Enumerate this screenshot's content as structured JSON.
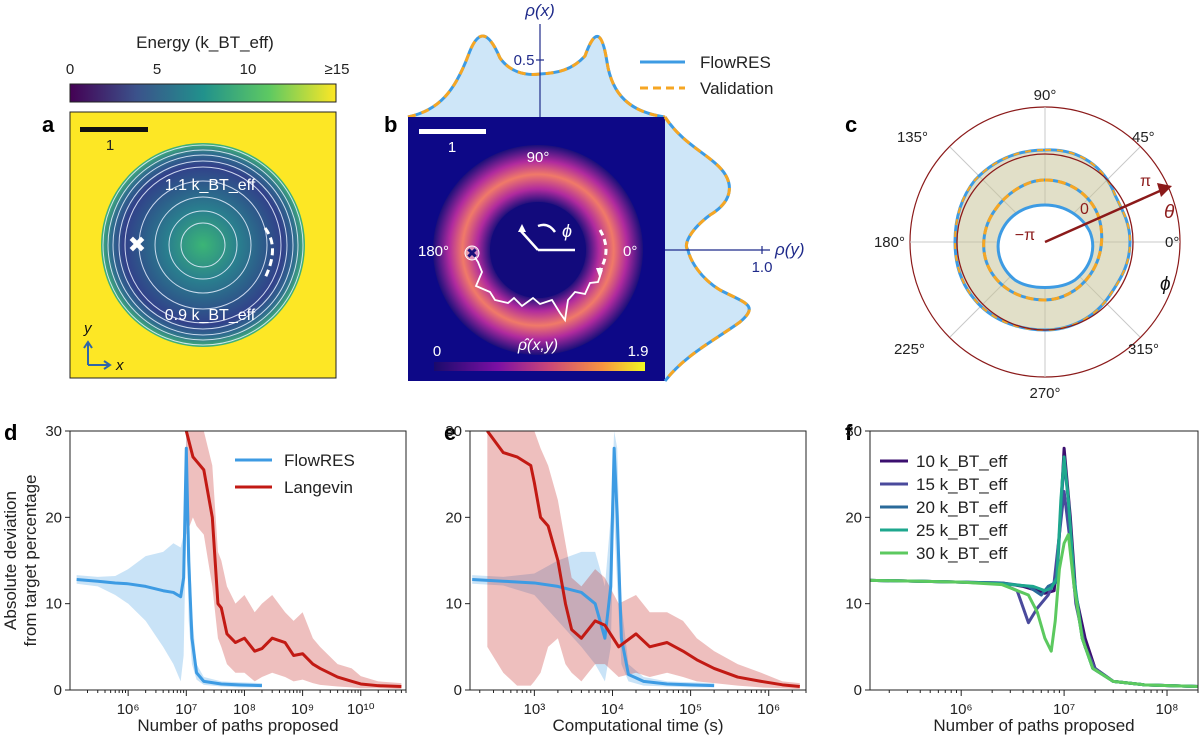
{
  "colors": {
    "flowres": "#3d9be3",
    "validation": "#f6a623",
    "langevin": "#c21a14",
    "polar_dark": "#8b1a1a",
    "axis_blue": "#1f2a8a"
  },
  "top": {
    "colorbar": {
      "title": "Energy (k_BT_eff)",
      "ticks": [
        "0",
        "5",
        "10",
        "≥15"
      ]
    },
    "panel_a": {
      "label": "a",
      "scalebar": "1",
      "contour_high": "1.1 k_BT_eff",
      "contour_low": "0.9 k_BT_eff",
      "axis_y": "y",
      "axis_x": "x"
    },
    "panel_b": {
      "label": "b",
      "scalebar": "1",
      "angle_90": "90°",
      "angle_180": "180°",
      "angle_0": "0°",
      "phi": "ϕ",
      "density_label": "ρ̂(x,y)",
      "cbar_min": "0",
      "cbar_max": "1.9",
      "rho_x": "ρ(x)",
      "rho_y": "ρ(y)",
      "rho_x_tick": "0.5",
      "rho_y_tick": "1.0",
      "legend": [
        "FlowRES",
        "Validation"
      ]
    },
    "panel_c": {
      "label": "c",
      "angles": [
        "90°",
        "45°",
        "0°",
        "315°",
        "270°",
        "225°",
        "180°",
        "135°"
      ],
      "theta": "θ",
      "phi": "ϕ",
      "pi": "π",
      "minus_pi": "−π",
      "zero": "0"
    }
  },
  "chart_data": [
    {
      "id": "d",
      "type": "line",
      "label": "d",
      "xlabel": "Number of paths proposed",
      "ylabel": [
        "Absolute deviation",
        "from target percentage"
      ],
      "xscale": "log",
      "xlim": [
        100000,
        60000000000
      ],
      "ylim": [
        0,
        30
      ],
      "xticks": [
        1000000,
        10000000,
        100000000,
        1000000000,
        10000000000
      ],
      "xtick_labels": [
        "10⁶",
        "10⁷",
        "10⁸",
        "10⁹",
        "10¹⁰"
      ],
      "yticks": [
        0,
        10,
        20,
        30
      ],
      "legend": [
        "FlowRES",
        "Langevin"
      ],
      "series": [
        {
          "name": "FlowRES",
          "x": [
            130000,
            300000,
            600000,
            1000000,
            2000000,
            4000000,
            6000000,
            8000000,
            9000000,
            10000000,
            11000000,
            12500000,
            15000000,
            20000000,
            40000000,
            80000000,
            200000000
          ],
          "y": [
            12.8,
            12.6,
            12.4,
            12.3,
            12.0,
            11.5,
            11.3,
            10.8,
            13.0,
            28.0,
            15.0,
            6.0,
            2.0,
            1.0,
            0.7,
            0.6,
            0.5
          ],
          "upper": [
            13.3,
            13.1,
            13.2,
            14.0,
            15.5,
            16.0,
            17.0,
            16.5,
            18.0,
            30.0,
            22.0,
            9.0,
            3.0,
            1.5,
            1.0,
            0.9,
            0.8
          ],
          "lower": [
            12.3,
            12.0,
            11.0,
            10.0,
            8.0,
            5.0,
            3.0,
            1.0,
            4.0,
            20.0,
            8.0,
            3.0,
            1.2,
            0.6,
            0.4,
            0.3,
            0.3
          ]
        },
        {
          "name": "Langevin",
          "x": [
            10000000,
            13000000,
            15000000,
            20000000,
            28000000,
            35000000,
            40000000,
            50000000,
            70000000,
            100000000,
            150000000,
            200000000,
            300000000,
            500000000,
            700000000,
            1000000000,
            1500000000,
            2000000000,
            4000000000,
            7000000000,
            10000000000,
            20000000000,
            50000000000
          ],
          "y": [
            30.0,
            27.0,
            26.5,
            25.5,
            20.0,
            10.0,
            9.5,
            6.5,
            5.5,
            6.0,
            4.5,
            4.8,
            6.0,
            5.5,
            4.0,
            4.2,
            3.0,
            2.5,
            1.5,
            1.0,
            0.7,
            0.5,
            0.4
          ],
          "upper": [
            30.0,
            30.0,
            30.0,
            30.0,
            26.0,
            16.0,
            15.0,
            12.0,
            10.0,
            11.0,
            9.0,
            10.0,
            11.0,
            9.0,
            8.0,
            9.0,
            6.0,
            5.0,
            3.0,
            2.5,
            1.6,
            1.0,
            0.8
          ],
          "lower": [
            18.0,
            20.0,
            19.0,
            18.0,
            12.0,
            6.0,
            5.0,
            3.0,
            2.0,
            2.0,
            1.0,
            1.5,
            2.0,
            1.5,
            1.0,
            1.2,
            0.8,
            0.6,
            0.4,
            0.3,
            0.2,
            0.2,
            0.1
          ]
        }
      ]
    },
    {
      "id": "e",
      "type": "line",
      "label": "e",
      "xlabel": "Computational time (s)",
      "xscale": "log",
      "xlim": [
        150,
        3000000
      ],
      "ylim": [
        0,
        30
      ],
      "xticks": [
        1000,
        10000,
        100000,
        1000000
      ],
      "xtick_labels": [
        "10³",
        "10⁴",
        "10⁵",
        "10⁶"
      ],
      "yticks": [
        0,
        10,
        20,
        30
      ],
      "series": [
        {
          "name": "FlowRES",
          "x": [
            160,
            400,
            1000,
            2000,
            4000,
            6000,
            8000,
            9500,
            10500,
            11500,
            13000,
            16000,
            25000,
            50000,
            100000,
            200000
          ],
          "y": [
            12.8,
            12.6,
            12.4,
            12.0,
            11.3,
            10.0,
            6.0,
            12.0,
            28.0,
            20.0,
            6.0,
            1.8,
            1.0,
            0.7,
            0.6,
            0.5
          ],
          "upper": [
            13.3,
            13.1,
            13.5,
            15.0,
            16.0,
            16.0,
            12.0,
            20.0,
            30.0,
            28.0,
            10.0,
            3.0,
            1.5,
            1.0,
            0.9,
            0.8
          ],
          "lower": [
            12.3,
            12.1,
            11.0,
            8.0,
            5.0,
            3.0,
            1.0,
            5.0,
            20.0,
            12.0,
            3.0,
            1.0,
            0.5,
            0.4,
            0.3,
            0.3
          ]
        },
        {
          "name": "Langevin",
          "x": [
            250,
            400,
            600,
            900,
            1000,
            1200,
            1500,
            2000,
            2500,
            3000,
            4000,
            6000,
            8000,
            12000,
            20000,
            30000,
            50000,
            80000,
            120000,
            200000,
            400000,
            800000,
            1500000,
            2500000
          ],
          "y": [
            30.0,
            27.5,
            27.0,
            26.0,
            24.0,
            20.0,
            19.0,
            15.0,
            10.0,
            7.0,
            6.0,
            8.0,
            7.5,
            5.0,
            6.5,
            5.0,
            5.5,
            4.5,
            3.5,
            2.5,
            1.5,
            1.0,
            0.6,
            0.4
          ],
          "upper": [
            30.0,
            30.0,
            30.0,
            30.0,
            30.0,
            28.0,
            26.0,
            22.0,
            17.0,
            13.0,
            12.0,
            14.0,
            13.0,
            10.0,
            11.0,
            9.0,
            9.0,
            8.0,
            6.0,
            4.5,
            3.0,
            2.0,
            1.0,
            0.8
          ],
          "lower": [
            5.0,
            2.0,
            0.5,
            0.5,
            1.0,
            2.0,
            5.0,
            6.0,
            3.0,
            2.0,
            1.0,
            3.0,
            3.0,
            1.5,
            2.0,
            1.5,
            2.0,
            1.5,
            1.0,
            0.8,
            0.5,
            0.3,
            0.2,
            0.1
          ]
        }
      ]
    },
    {
      "id": "f",
      "type": "line",
      "label": "f",
      "xlabel": "Number of paths proposed",
      "xscale": "log",
      "xlim": [
        130000,
        200000000
      ],
      "ylim": [
        0,
        30
      ],
      "xticks": [
        1000000,
        10000000,
        100000000
      ],
      "xtick_labels": [
        "10⁶",
        "10⁷",
        "10⁸"
      ],
      "yticks": [
        0,
        10,
        20,
        30
      ],
      "series": [
        {
          "name": "10 k_BT_eff",
          "color": "#3b0f6f",
          "x": [
            130000,
            400000,
            1000000,
            2500000,
            4000000,
            5500000,
            6500000,
            8000000,
            9000000,
            10000000,
            11500000,
            13000000,
            16000000,
            20000000,
            30000000,
            60000000,
            200000000
          ],
          "y": [
            12.7,
            12.6,
            12.5,
            12.4,
            12.0,
            11.5,
            11.2,
            11.5,
            18.0,
            28.0,
            20.0,
            11.0,
            6.0,
            2.5,
            1.0,
            0.6,
            0.4
          ]
        },
        {
          "name": "15 k_BT_eff",
          "color": "#4a4a9c",
          "x": [
            130000,
            400000,
            1000000,
            2500000,
            3500000,
            4500000,
            5500000,
            7000000,
            8000000,
            9000000,
            10000000,
            11500000,
            13000000,
            16000000,
            20000000,
            30000000,
            60000000,
            200000000
          ],
          "y": [
            12.7,
            12.6,
            12.5,
            12.3,
            11.5,
            7.8,
            9.5,
            11.0,
            12.5,
            18.0,
            23.0,
            17.0,
            10.0,
            5.0,
            2.5,
            1.0,
            0.6,
            0.4
          ]
        },
        {
          "name": "20 k_BT_eff",
          "color": "#2a6a9a",
          "x": [
            130000,
            400000,
            1000000,
            2500000,
            4500000,
            6000000,
            7000000,
            8500000,
            9200000,
            10000000,
            11000000,
            12500000,
            15000000,
            19000000,
            30000000,
            60000000,
            200000000
          ],
          "y": [
            12.7,
            12.6,
            12.5,
            12.4,
            12.0,
            11.0,
            12.0,
            12.5,
            20.0,
            26.5,
            22.0,
            12.0,
            6.0,
            2.5,
            1.0,
            0.6,
            0.4
          ]
        },
        {
          "name": "25 k_BT_eff",
          "color": "#1ea78e",
          "x": [
            130000,
            400000,
            1000000,
            2500000,
            5000000,
            6500000,
            7500000,
            8500000,
            9300000,
            10000000,
            11000000,
            12500000,
            15000000,
            19000000,
            30000000,
            60000000,
            200000000
          ],
          "y": [
            12.7,
            12.6,
            12.5,
            12.3,
            12.0,
            11.5,
            11.8,
            13.0,
            22.0,
            27.0,
            22.0,
            13.0,
            6.0,
            2.5,
            1.0,
            0.6,
            0.4
          ]
        },
        {
          "name": "30 k_BT_eff",
          "color": "#5cc95f",
          "x": [
            130000,
            400000,
            1000000,
            2500000,
            4500000,
            5500000,
            6500000,
            7500000,
            8200000,
            9000000,
            10000000,
            11000000,
            12500000,
            15000000,
            19000000,
            30000000,
            60000000,
            200000000
          ],
          "y": [
            12.7,
            12.6,
            12.5,
            12.2,
            11.0,
            9.0,
            6.0,
            4.5,
            8.0,
            14.0,
            17.0,
            18.0,
            12.0,
            6.0,
            2.5,
            1.0,
            0.6,
            0.4
          ]
        }
      ]
    }
  ]
}
